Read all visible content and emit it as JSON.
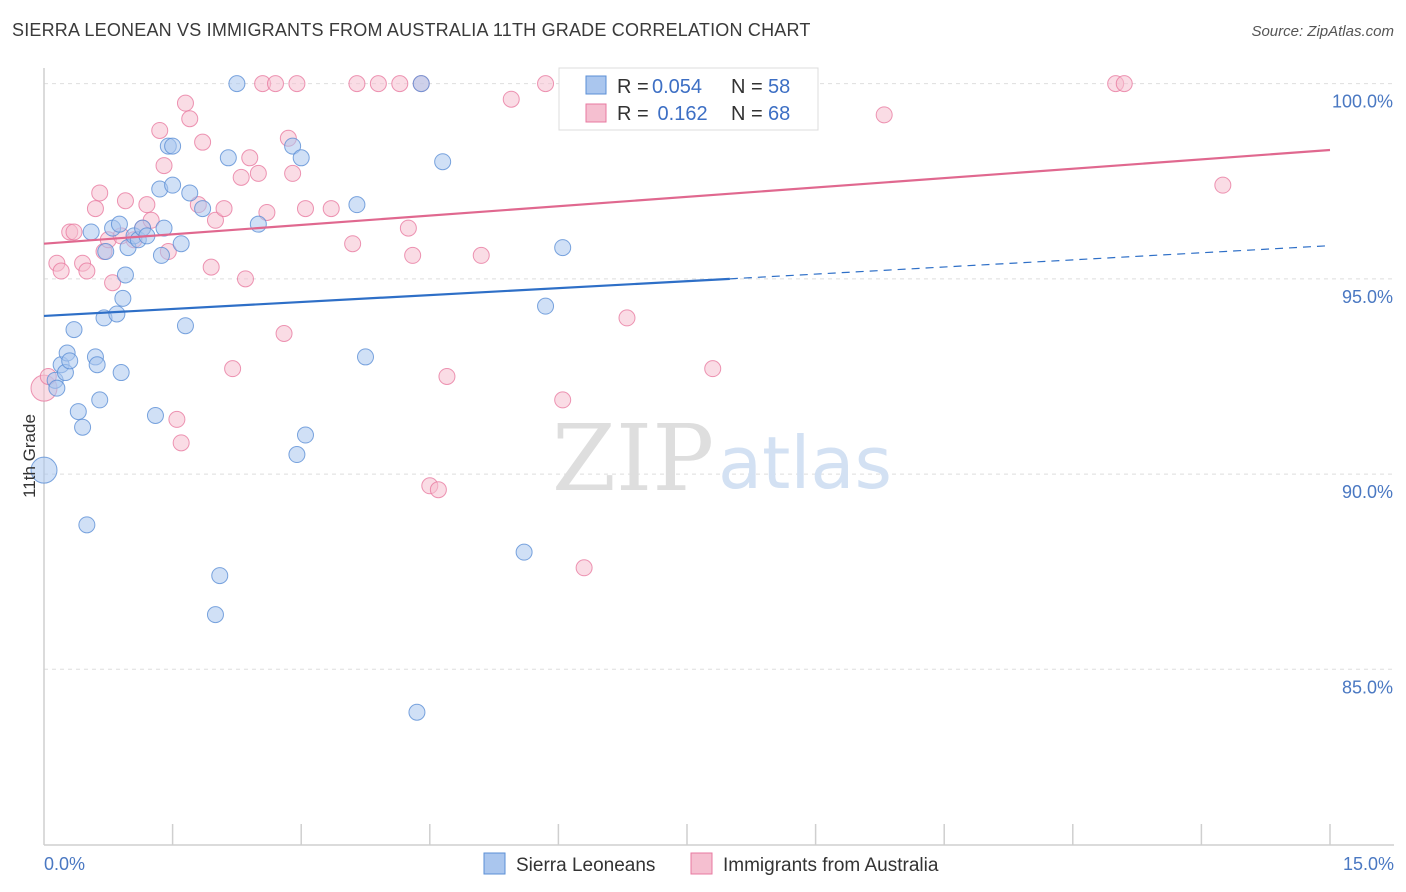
{
  "title": "SIERRA LEONEAN VS IMMIGRANTS FROM AUSTRALIA 11TH GRADE CORRELATION CHART",
  "source": "Source: ZipAtlas.com",
  "watermark": {
    "zip": "ZIP",
    "atlas": "atlas"
  },
  "legend_top": [
    {
      "r_label": "R =",
      "r_value": "0.054",
      "n_label": "N =",
      "n_value": "58"
    },
    {
      "r_label": "R =",
      "r_value": " 0.162",
      "n_label": "N =",
      "n_value": "68"
    }
  ],
  "legend_bottom": [
    "Sierra Leoneans",
    "Immigrants from Australia"
  ],
  "colors": {
    "blue": "#5b8fd6",
    "blue_fill": "#aac6ee",
    "pink": "#e87aa0",
    "pink_fill": "#f5bfd0",
    "blue_line": "#2e6fc7",
    "pink_line": "#e0688f"
  },
  "chart_data": {
    "type": "scatter",
    "title": "SIERRA LEONEAN VS IMMIGRANTS FROM AUSTRALIA 11TH GRADE CORRELATION CHART",
    "ylabel": "11th Grade",
    "xlabel": "",
    "x_tick_labels": [
      "0.0%",
      "15.0%"
    ],
    "y_tick_labels": [
      "100.0%",
      "95.0%",
      "90.0%",
      "85.0%"
    ],
    "y_ticks": [
      100,
      95,
      90,
      85
    ],
    "xlim": [
      0,
      15
    ],
    "ylim": [
      80.5,
      100.4
    ],
    "grid": true,
    "legend_position": "top-center",
    "series": [
      {
        "name": "Sierra Leoneans",
        "r": 0.054,
        "n": 58,
        "trend": {
          "x0": 0,
          "y0": 94.05,
          "x1": 8.0,
          "y1": 95.0,
          "x_dash_end": 15.0,
          "y_dash_end": 95.85
        },
        "points": [
          [
            0.0,
            90.1
          ],
          [
            0.13,
            92.4
          ],
          [
            0.15,
            92.2
          ],
          [
            0.2,
            92.8
          ],
          [
            0.25,
            92.6
          ],
          [
            0.27,
            93.1
          ],
          [
            0.3,
            92.9
          ],
          [
            0.35,
            93.7
          ],
          [
            0.4,
            91.6
          ],
          [
            0.45,
            91.2
          ],
          [
            0.5,
            88.7
          ],
          [
            0.55,
            96.2
          ],
          [
            0.6,
            93.0
          ],
          [
            0.62,
            92.8
          ],
          [
            0.65,
            91.9
          ],
          [
            0.7,
            94.0
          ],
          [
            0.72,
            95.7
          ],
          [
            0.8,
            96.3
          ],
          [
            0.85,
            94.1
          ],
          [
            0.88,
            96.4
          ],
          [
            0.9,
            92.6
          ],
          [
            0.92,
            94.5
          ],
          [
            0.95,
            95.1
          ],
          [
            0.98,
            95.8
          ],
          [
            1.05,
            96.1
          ],
          [
            1.1,
            96.0
          ],
          [
            1.15,
            96.3
          ],
          [
            1.2,
            96.1
          ],
          [
            1.3,
            91.5
          ],
          [
            1.35,
            97.3
          ],
          [
            1.37,
            95.6
          ],
          [
            1.4,
            96.3
          ],
          [
            1.45,
            98.4
          ],
          [
            1.5,
            97.4
          ],
          [
            1.5,
            98.4
          ],
          [
            1.6,
            95.9
          ],
          [
            1.65,
            93.8
          ],
          [
            1.7,
            97.2
          ],
          [
            1.85,
            96.8
          ],
          [
            2.0,
            86.4
          ],
          [
            2.05,
            87.4
          ],
          [
            2.15,
            98.1
          ],
          [
            2.25,
            100.0
          ],
          [
            2.5,
            96.4
          ],
          [
            2.9,
            98.4
          ],
          [
            2.95,
            90.5
          ],
          [
            3.0,
            98.1
          ],
          [
            3.05,
            91.0
          ],
          [
            3.65,
            96.9
          ],
          [
            3.75,
            93.0
          ],
          [
            4.35,
            83.9
          ],
          [
            4.4,
            100.0
          ],
          [
            4.65,
            98.0
          ],
          [
            5.6,
            88.0
          ],
          [
            5.85,
            94.3
          ],
          [
            6.05,
            95.8
          ]
        ]
      },
      {
        "name": "Immigrants from Australia",
        "r": 0.162,
        "n": 68,
        "trend": {
          "x0": 0,
          "y0": 95.9,
          "x1": 15.0,
          "y1": 98.3
        },
        "points": [
          [
            0.0,
            92.2
          ],
          [
            0.05,
            92.5
          ],
          [
            0.15,
            95.4
          ],
          [
            0.2,
            95.2
          ],
          [
            0.3,
            96.2
          ],
          [
            0.35,
            96.2
          ],
          [
            0.45,
            95.4
          ],
          [
            0.5,
            95.2
          ],
          [
            0.6,
            96.8
          ],
          [
            0.65,
            97.2
          ],
          [
            0.7,
            95.7
          ],
          [
            0.75,
            96.0
          ],
          [
            0.8,
            94.9
          ],
          [
            0.9,
            96.1
          ],
          [
            0.95,
            97.0
          ],
          [
            1.05,
            96.0
          ],
          [
            1.15,
            96.3
          ],
          [
            1.2,
            96.9
          ],
          [
            1.25,
            96.5
          ],
          [
            1.35,
            98.8
          ],
          [
            1.4,
            97.9
          ],
          [
            1.45,
            95.7
          ],
          [
            1.55,
            91.4
          ],
          [
            1.6,
            90.8
          ],
          [
            1.65,
            99.5
          ],
          [
            1.7,
            99.1
          ],
          [
            1.8,
            96.9
          ],
          [
            1.85,
            98.5
          ],
          [
            1.95,
            95.3
          ],
          [
            2.0,
            96.5
          ],
          [
            2.1,
            96.8
          ],
          [
            2.2,
            92.7
          ],
          [
            2.3,
            97.6
          ],
          [
            2.35,
            95.0
          ],
          [
            2.4,
            98.1
          ],
          [
            2.5,
            97.7
          ],
          [
            2.55,
            100.0
          ],
          [
            2.6,
            96.7
          ],
          [
            2.7,
            100.0
          ],
          [
            2.8,
            93.6
          ],
          [
            2.85,
            98.6
          ],
          [
            2.9,
            97.7
          ],
          [
            2.95,
            100.0
          ],
          [
            3.05,
            96.8
          ],
          [
            3.35,
            96.8
          ],
          [
            3.6,
            95.9
          ],
          [
            3.65,
            100.0
          ],
          [
            3.9,
            100.0
          ],
          [
            4.15,
            100.0
          ],
          [
            4.25,
            96.3
          ],
          [
            4.3,
            95.6
          ],
          [
            4.4,
            100.0
          ],
          [
            4.5,
            89.7
          ],
          [
            4.6,
            89.6
          ],
          [
            4.7,
            92.5
          ],
          [
            5.1,
            95.6
          ],
          [
            5.45,
            99.6
          ],
          [
            5.85,
            100.0
          ],
          [
            6.05,
            91.9
          ],
          [
            6.3,
            87.6
          ],
          [
            6.8,
            94.0
          ],
          [
            7.8,
            92.7
          ],
          [
            9.8,
            99.2
          ],
          [
            12.5,
            100.0
          ],
          [
            12.6,
            100.0
          ],
          [
            13.75,
            97.4
          ]
        ]
      }
    ]
  }
}
